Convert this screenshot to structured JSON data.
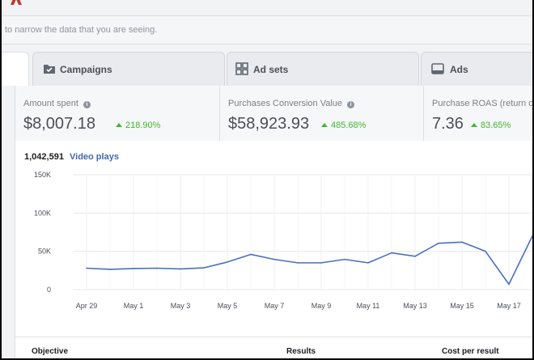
{
  "filter": {
    "text": "to narrow the data that you are seeing."
  },
  "tabs": [
    {
      "label": "Campaigns",
      "icon": "folder-icon"
    },
    {
      "label": "Ad sets",
      "icon": "grid-icon"
    },
    {
      "label": "Ads",
      "icon": "ad-icon"
    }
  ],
  "metrics": [
    {
      "label": "Amount spent",
      "value": "$8,007.18",
      "change": "218.90%"
    },
    {
      "label": "Purchases Conversion Value",
      "value": "$58,923.93",
      "change": "485.68%"
    },
    {
      "label": "Purchase ROAS (return o",
      "value": "7.36",
      "change": "83.65%"
    }
  ],
  "chart_header": {
    "count": "1,042,591",
    "metric": "Video plays"
  },
  "chart_data": {
    "type": "line",
    "title": "",
    "xlabel": "",
    "ylabel": "",
    "ylim": [
      0,
      150000
    ],
    "y_ticks": [
      "0",
      "50K",
      "100K",
      "150K"
    ],
    "x_tick_labels": [
      "Apr 29",
      "May 1",
      "May 3",
      "May 5",
      "May 7",
      "May 9",
      "May 11",
      "May 13",
      "May 15",
      "May 17"
    ],
    "x": [
      "Apr 29",
      "Apr 30",
      "May 1",
      "May 2",
      "May 3",
      "May 4",
      "May 5",
      "May 6",
      "May 7",
      "May 8",
      "May 9",
      "May 10",
      "May 11",
      "May 12",
      "May 13",
      "May 14",
      "May 15",
      "May 16",
      "May 17",
      "May 18"
    ],
    "series": [
      {
        "values": [
          28000,
          26500,
          27500,
          28000,
          27000,
          28500,
          36000,
          46000,
          39500,
          35000,
          35000,
          39500,
          35000,
          48000,
          43500,
          60500,
          62000,
          50000,
          7000,
          70000
        ],
        "color": "#4a6fbf"
      }
    ],
    "grid": true
  },
  "table": {
    "columns": [
      "Objective",
      "Results",
      "Cost per result"
    ]
  }
}
